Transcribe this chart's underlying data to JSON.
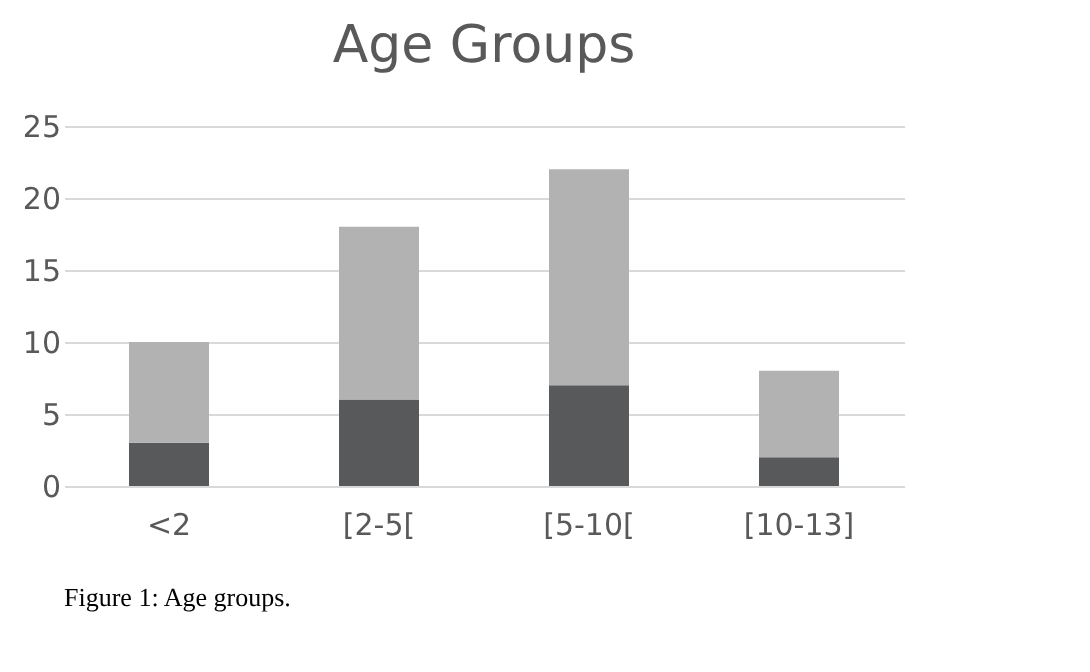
{
  "chart_data": {
    "type": "bar",
    "title": "Age Groups",
    "categories": [
      "<2",
      "[2-5[",
      "[5-10[",
      "[10-13]"
    ],
    "series": [
      {
        "color": "#58595b",
        "values": [
          3,
          6,
          7,
          2
        ]
      },
      {
        "color": "#b2b2b2",
        "values": [
          7,
          12,
          15,
          6
        ]
      }
    ],
    "stacked": true,
    "ylim": [
      0,
      25
    ],
    "yticks": [
      0,
      5,
      10,
      15,
      20,
      25
    ],
    "grid": "y",
    "legend": false,
    "annotations": [
      "Figure 1: Age groups."
    ]
  }
}
